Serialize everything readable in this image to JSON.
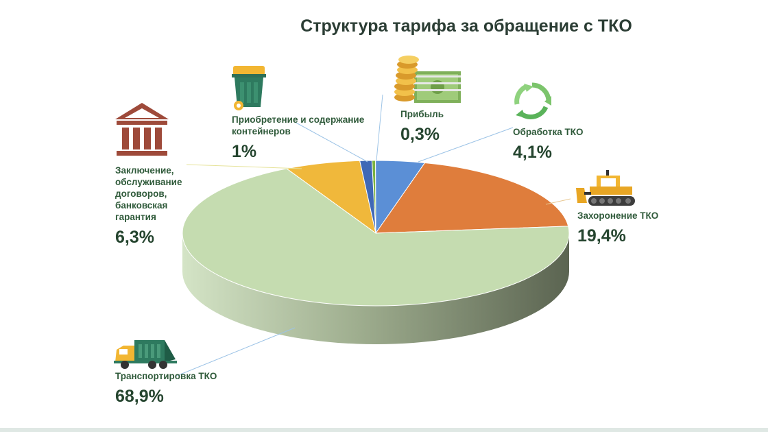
{
  "title": "Структура тарифа за обращение с ТКО",
  "chart_data": {
    "type": "pie",
    "title": "Структура тарифа за обращение с ТКО",
    "slices": [
      {
        "label": "Транспортировка ТКО",
        "value": 68.9,
        "display": "68,9%",
        "color": "#c5dcb0",
        "icon": "garbage-truck-icon"
      },
      {
        "label": "Заключение, обслуживание договоров, банковская гарантия",
        "value": 6.3,
        "display": "6,3%",
        "color": "#f0b83b",
        "icon": "bank-building-icon"
      },
      {
        "label": "Приобретение и содержание контейнеров",
        "value": 1.0,
        "display": "1%",
        "color": "#3f68b6",
        "icon": "waste-container-icon"
      },
      {
        "label": "Прибыль",
        "value": 0.3,
        "display": "0,3%",
        "color": "#7cb342",
        "icon": "money-coins-icon"
      },
      {
        "label": "Обработка ТКО",
        "value": 4.1,
        "display": "4,1%",
        "color": "#5b8fd6",
        "icon": "recycle-icon"
      },
      {
        "label": "Захоронение ТКО",
        "value": 19.4,
        "display": "19,4%",
        "color": "#df7d3c",
        "icon": "bulldozer-icon"
      }
    ]
  },
  "labels": {
    "transport": {
      "line1": "Транспортировка ТКО",
      "pct": "68,9%"
    },
    "contracts": {
      "line1": "Заключение,",
      "line2": "обслуживание",
      "line3": "договоров,",
      "line4": "банковская",
      "line5": "гарантия",
      "pct": "6,3%"
    },
    "containers": {
      "line1": "Приобретение и содержание",
      "line2": "контейнеров",
      "pct": "1%"
    },
    "profit": {
      "line1": "Прибыль",
      "pct": "0,3%"
    },
    "processing": {
      "line1": "Обработка ТКО",
      "pct": "4,1%"
    },
    "burial": {
      "line1": "Захоронение ТКО",
      "pct": "19,4%"
    }
  }
}
